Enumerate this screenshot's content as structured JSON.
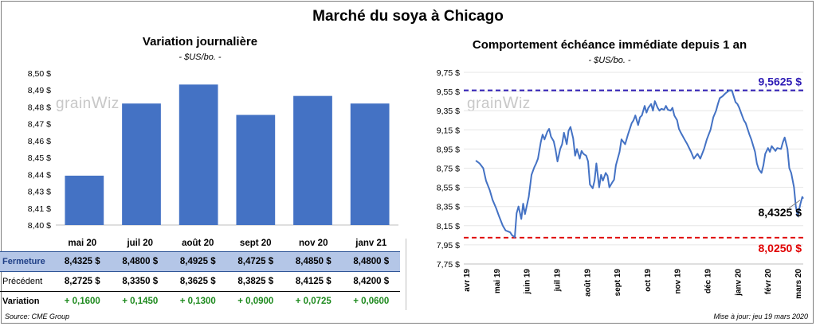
{
  "title": "Marché du soya à Chicago",
  "watermark": {
    "text_left": "grain",
    "text_right": "iz"
  },
  "footer": {
    "source": "Source: CME Group",
    "updated": "Mise à jour: jeu 19 mars 2020"
  },
  "colors": {
    "bar": "#4472c4",
    "line": "#4472c4",
    "high": "#2e1cb5",
    "low": "#e00000",
    "variation": "#1e8a1e",
    "close_row": "#b4c6e7"
  },
  "chart_data": [
    {
      "type": "bar",
      "title": "Variation journalière",
      "subtitle": "- $US/bo. -",
      "categories": [
        "mai 20",
        "juil 20",
        "août 20",
        "sept 20",
        "nov 20",
        "janv 21"
      ],
      "values": [
        8.4325,
        8.48,
        8.4925,
        8.4725,
        8.485,
        8.48
      ],
      "ylim": [
        8.4,
        8.5
      ],
      "yticks": [
        "8,40 $",
        "8,41 $",
        "8,43 $",
        "8,44 $",
        "8,45 $",
        "8,46 $",
        "8,47 $",
        "8,48 $",
        "8,49 $",
        "8,50 $"
      ],
      "grid": false
    },
    {
      "type": "line",
      "title": "Comportement échéance immédiate depuis 1 an",
      "subtitle": "- $US/bo. -",
      "ylim": [
        7.75,
        9.75
      ],
      "yticks": [
        "7,75 $",
        "7,95 $",
        "8,15 $",
        "8,35 $",
        "8,55 $",
        "8,75 $",
        "8,95 $",
        "9,15 $",
        "9,35 $",
        "9,55 $",
        "9,75 $"
      ],
      "xticks": [
        "avr 19",
        "mai 19",
        "juin 19",
        "juil 19",
        "août 19",
        "sept 19",
        "oct 19",
        "nov 19",
        "déc 19",
        "janv 20",
        "févr 20",
        "mars 20"
      ],
      "x_range": [
        "2019-03-19",
        "2020-03-19"
      ],
      "high": {
        "value": 9.5625,
        "label": "9,5625 $"
      },
      "low": {
        "value": 8.025,
        "label": "8,0250 $"
      },
      "last": {
        "value": 8.4325,
        "label": "8,4325 $"
      },
      "series": [
        {
          "values": [
            [
              "2019-04-01",
              8.83
            ],
            [
              "2019-04-05",
              8.8
            ],
            [
              "2019-04-09",
              8.75
            ],
            [
              "2019-04-12",
              8.62
            ],
            [
              "2019-04-16",
              8.52
            ],
            [
              "2019-04-19",
              8.42
            ],
            [
              "2019-04-23",
              8.33
            ],
            [
              "2019-04-26",
              8.25
            ],
            [
              "2019-04-30",
              8.15
            ],
            [
              "2019-05-03",
              8.1
            ],
            [
              "2019-05-08",
              8.08
            ],
            [
              "2019-05-10",
              8.05
            ],
            [
              "2019-05-13",
              8.03
            ],
            [
              "2019-05-15",
              8.28
            ],
            [
              "2019-05-17",
              8.35
            ],
            [
              "2019-05-20",
              8.22
            ],
            [
              "2019-05-22",
              8.38
            ],
            [
              "2019-05-24",
              8.27
            ],
            [
              "2019-05-28",
              8.45
            ],
            [
              "2019-05-31",
              8.68
            ],
            [
              "2019-06-03",
              8.76
            ],
            [
              "2019-06-05",
              8.8
            ],
            [
              "2019-06-07",
              8.85
            ],
            [
              "2019-06-10",
              9.02
            ],
            [
              "2019-06-12",
              9.1
            ],
            [
              "2019-06-14",
              9.05
            ],
            [
              "2019-06-17",
              9.13
            ],
            [
              "2019-06-19",
              9.16
            ],
            [
              "2019-06-21",
              9.08
            ],
            [
              "2019-06-24",
              9.03
            ],
            [
              "2019-06-26",
              8.94
            ],
            [
              "2019-06-28",
              8.82
            ],
            [
              "2019-07-01",
              8.95
            ],
            [
              "2019-07-03",
              9.0
            ],
            [
              "2019-07-05",
              9.12
            ],
            [
              "2019-07-08",
              9.0
            ],
            [
              "2019-07-10",
              9.14
            ],
            [
              "2019-07-12",
              9.18
            ],
            [
              "2019-07-15",
              9.06
            ],
            [
              "2019-07-17",
              8.88
            ],
            [
              "2019-07-19",
              8.95
            ],
            [
              "2019-07-22",
              8.85
            ],
            [
              "2019-07-24",
              8.93
            ],
            [
              "2019-07-26",
              8.9
            ],
            [
              "2019-07-29",
              8.88
            ],
            [
              "2019-07-31",
              8.82
            ],
            [
              "2019-08-02",
              8.58
            ],
            [
              "2019-08-05",
              8.54
            ],
            [
              "2019-08-07",
              8.62
            ],
            [
              "2019-08-09",
              8.8
            ],
            [
              "2019-08-12",
              8.55
            ],
            [
              "2019-08-14",
              8.68
            ],
            [
              "2019-08-16",
              8.62
            ],
            [
              "2019-08-19",
              8.7
            ],
            [
              "2019-08-21",
              8.67
            ],
            [
              "2019-08-23",
              8.55
            ],
            [
              "2019-08-26",
              8.6
            ],
            [
              "2019-08-28",
              8.63
            ],
            [
              "2019-08-30",
              8.78
            ],
            [
              "2019-09-03",
              8.92
            ],
            [
              "2019-09-05",
              9.05
            ],
            [
              "2019-09-09",
              9.0
            ],
            [
              "2019-09-12",
              9.1
            ],
            [
              "2019-09-16",
              9.22
            ],
            [
              "2019-09-18",
              9.25
            ],
            [
              "2019-09-20",
              9.3
            ],
            [
              "2019-09-23",
              9.2
            ],
            [
              "2019-09-25",
              9.28
            ],
            [
              "2019-09-27",
              9.3
            ],
            [
              "2019-09-30",
              9.4
            ],
            [
              "2019-10-02",
              9.33
            ],
            [
              "2019-10-04",
              9.38
            ],
            [
              "2019-10-07",
              9.42
            ],
            [
              "2019-10-09",
              9.35
            ],
            [
              "2019-10-11",
              9.45
            ],
            [
              "2019-10-14",
              9.38
            ],
            [
              "2019-10-16",
              9.35
            ],
            [
              "2019-10-18",
              9.37
            ],
            [
              "2019-10-21",
              9.36
            ],
            [
              "2019-10-23",
              9.4
            ],
            [
              "2019-10-25",
              9.36
            ],
            [
              "2019-10-28",
              9.35
            ],
            [
              "2019-10-30",
              9.38
            ],
            [
              "2019-11-01",
              9.3
            ],
            [
              "2019-11-04",
              9.25
            ],
            [
              "2019-11-06",
              9.16
            ],
            [
              "2019-11-08",
              9.12
            ],
            [
              "2019-11-12",
              9.05
            ],
            [
              "2019-11-15",
              9.0
            ],
            [
              "2019-11-19",
              8.92
            ],
            [
              "2019-11-22",
              8.85
            ],
            [
              "2019-11-26",
              8.9
            ],
            [
              "2019-11-29",
              8.85
            ],
            [
              "2019-12-03",
              8.95
            ],
            [
              "2019-12-06",
              9.05
            ],
            [
              "2019-12-10",
              9.15
            ],
            [
              "2019-12-13",
              9.28
            ],
            [
              "2019-12-16",
              9.35
            ],
            [
              "2019-12-18",
              9.42
            ],
            [
              "2019-12-20",
              9.48
            ],
            [
              "2019-12-23",
              9.5
            ],
            [
              "2019-12-26",
              9.53
            ],
            [
              "2019-12-30",
              9.56
            ],
            [
              "2020-01-02",
              9.5625
            ],
            [
              "2020-01-06",
              9.44
            ],
            [
              "2020-01-08",
              9.42
            ],
            [
              "2020-01-10",
              9.38
            ],
            [
              "2020-01-13",
              9.3
            ],
            [
              "2020-01-15",
              9.25
            ],
            [
              "2020-01-17",
              9.22
            ],
            [
              "2020-01-21",
              9.1
            ],
            [
              "2020-01-23",
              9.05
            ],
            [
              "2020-01-27",
              8.92
            ],
            [
              "2020-01-29",
              8.8
            ],
            [
              "2020-01-31",
              8.74
            ],
            [
              "2020-02-03",
              8.7
            ],
            [
              "2020-02-05",
              8.78
            ],
            [
              "2020-02-07",
              8.9
            ],
            [
              "2020-02-10",
              8.96
            ],
            [
              "2020-02-12",
              8.92
            ],
            [
              "2020-02-14",
              8.98
            ],
            [
              "2020-02-18",
              8.93
            ],
            [
              "2020-02-20",
              8.96
            ],
            [
              "2020-02-24",
              8.95
            ],
            [
              "2020-02-26",
              9.02
            ],
            [
              "2020-02-28",
              9.07
            ],
            [
              "2020-03-02",
              8.95
            ],
            [
              "2020-03-04",
              8.75
            ],
            [
              "2020-03-06",
              8.7
            ],
            [
              "2020-03-09",
              8.55
            ],
            [
              "2020-03-11",
              8.35
            ],
            [
              "2020-03-13",
              8.25
            ],
            [
              "2020-03-16",
              8.38
            ],
            [
              "2020-03-18",
              8.45
            ],
            [
              "2020-03-19",
              8.4325
            ]
          ]
        }
      ]
    }
  ],
  "table": {
    "contracts": [
      "mai 20",
      "juil 20",
      "août 20",
      "sept 20",
      "nov 20",
      "janv 21"
    ],
    "rows": [
      {
        "label": "Fermeture",
        "values": [
          "8,4325 $",
          "8,4800 $",
          "8,4925 $",
          "8,4725 $",
          "8,4850 $",
          "8,4800 $"
        ]
      },
      {
        "label": "Précédent",
        "values": [
          "8,2725 $",
          "8,3350 $",
          "8,3625 $",
          "8,3825 $",
          "8,4125 $",
          "8,4200 $"
        ]
      },
      {
        "label": "Variation",
        "values": [
          "+ 0,1600",
          "+ 0,1450",
          "+ 0,1300",
          "+ 0,0900",
          "+ 0,0725",
          "+ 0,0600"
        ]
      }
    ]
  }
}
